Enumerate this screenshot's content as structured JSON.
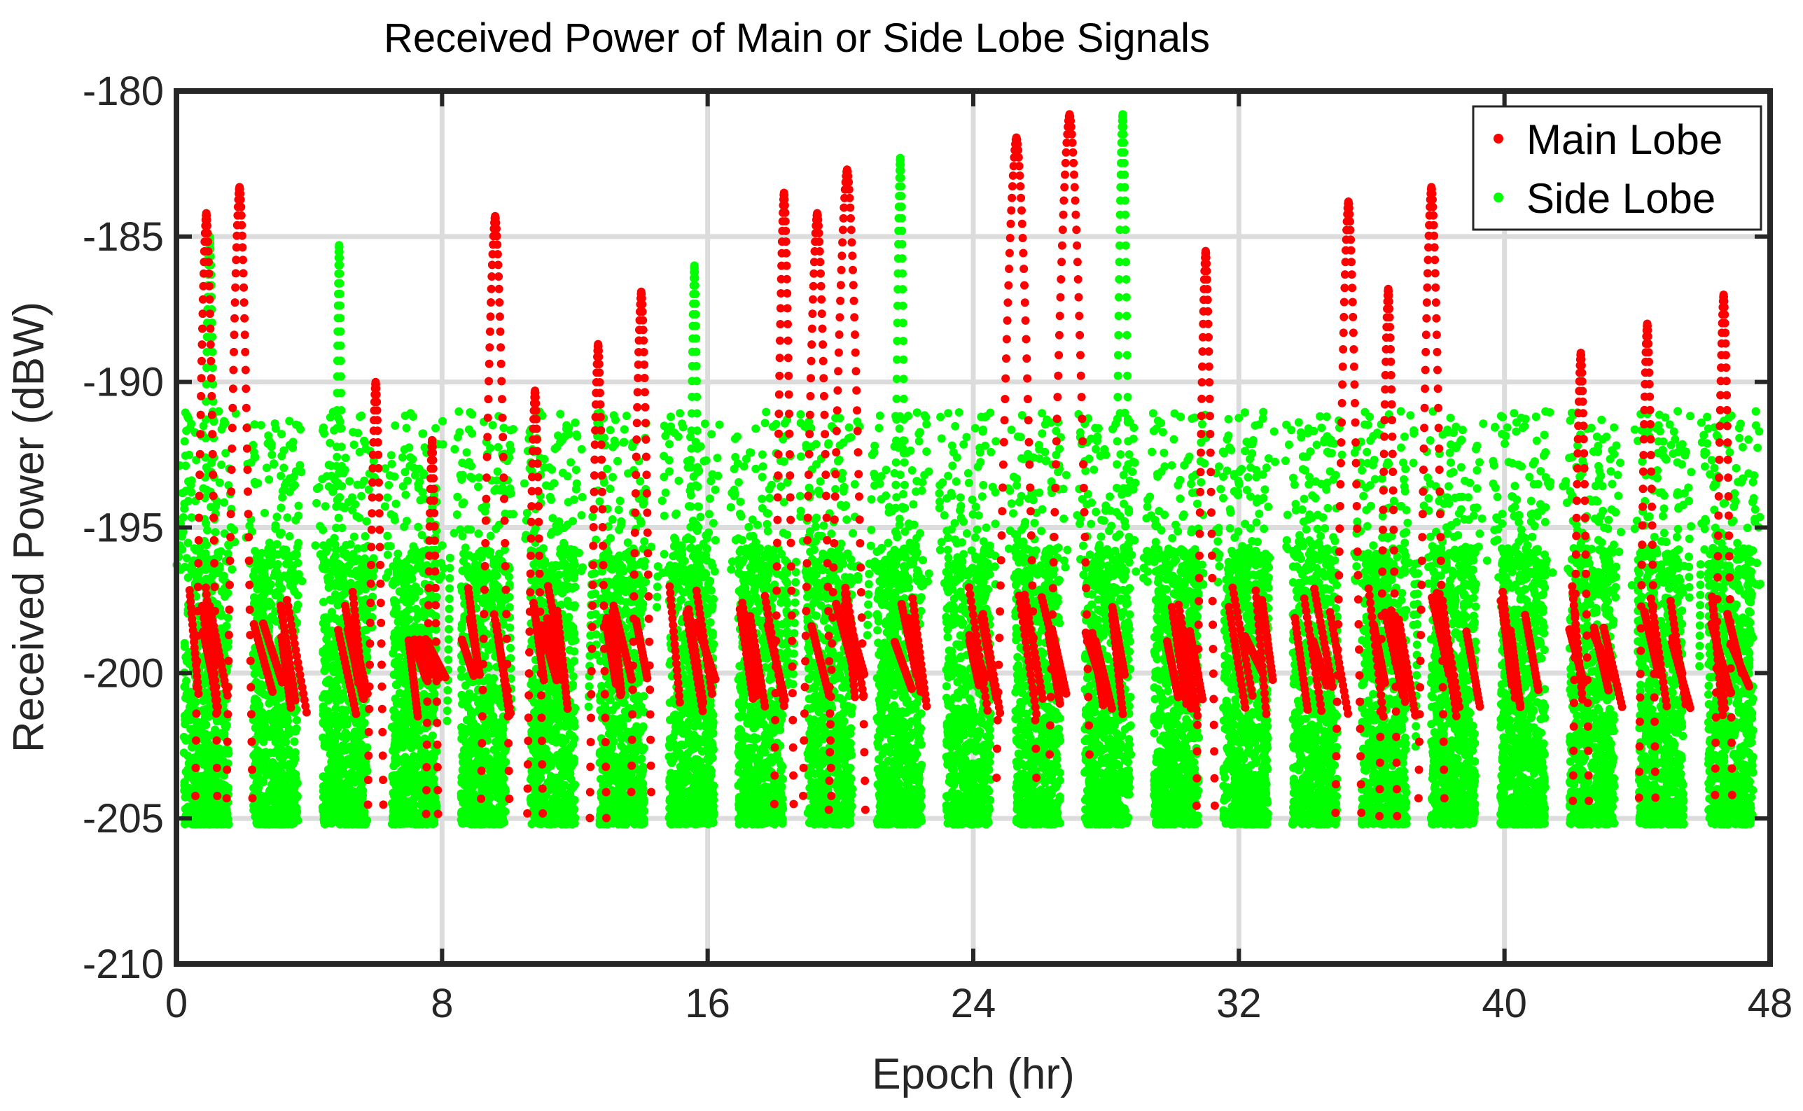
{
  "chart_data": {
    "type": "scatter",
    "title": "Received Power of Main or Side Lobe Signals",
    "xlabel": "Epoch (hr)",
    "ylabel": "Received Power (dBW)",
    "xlim": [
      0,
      48
    ],
    "ylim": [
      -210,
      -180
    ],
    "xticks": [
      0,
      8,
      16,
      24,
      32,
      40,
      48
    ],
    "yticks": [
      -210,
      -205,
      -200,
      -195,
      -190,
      -185,
      -180
    ],
    "grid": true,
    "legend_position": "top-right",
    "series": [
      {
        "name": "Main Lobe",
        "color": "#ff0000"
      },
      {
        "name": "Side Lobe",
        "color": "#00ff00"
      }
    ],
    "passes": [
      {
        "t": 0.9,
        "s": "main",
        "peak": -184.2,
        "hw": 0.35
      },
      {
        "t": 1.9,
        "s": "main",
        "peak": -183.3,
        "hw": 0.4
      },
      {
        "t": 1.0,
        "s": "side",
        "peak": -185.0,
        "hw": 0.25
      },
      {
        "t": 4.9,
        "s": "side",
        "peak": -185.3,
        "hw": 0.15
      },
      {
        "t": 6.0,
        "s": "main",
        "peak": -190.0,
        "hw": 0.3
      },
      {
        "t": 7.7,
        "s": "main",
        "peak": -192.0,
        "hw": 0.25
      },
      {
        "t": 9.6,
        "s": "main",
        "peak": -184.3,
        "hw": 0.45
      },
      {
        "t": 10.8,
        "s": "main",
        "peak": -190.3,
        "hw": 0.3
      },
      {
        "t": 12.7,
        "s": "main",
        "peak": -188.7,
        "hw": 0.3
      },
      {
        "t": 14.0,
        "s": "main",
        "peak": -186.9,
        "hw": 0.35
      },
      {
        "t": 15.6,
        "s": "side",
        "peak": -186.0,
        "hw": 0.2
      },
      {
        "t": 18.3,
        "s": "main",
        "peak": -183.5,
        "hw": 0.3
      },
      {
        "t": 19.3,
        "s": "main",
        "peak": -184.2,
        "hw": 0.45
      },
      {
        "t": 20.2,
        "s": "main",
        "peak": -182.7,
        "hw": 0.55
      },
      {
        "t": 21.8,
        "s": "side",
        "peak": -182.3,
        "hw": 0.2
      },
      {
        "t": 25.3,
        "s": "main",
        "peak": -181.6,
        "hw": 0.6
      },
      {
        "t": 26.9,
        "s": "main",
        "peak": -180.8,
        "hw": 0.6
      },
      {
        "t": 28.5,
        "s": "side",
        "peak": -180.8,
        "hw": 0.25
      },
      {
        "t": 31.0,
        "s": "main",
        "peak": -185.5,
        "hw": 0.3
      },
      {
        "t": 35.3,
        "s": "main",
        "peak": -183.8,
        "hw": 0.4
      },
      {
        "t": 36.5,
        "s": "main",
        "peak": -186.8,
        "hw": 0.3
      },
      {
        "t": 37.8,
        "s": "main",
        "peak": -183.3,
        "hw": 0.4
      },
      {
        "t": 42.3,
        "s": "main",
        "peak": -189.0,
        "hw": 0.3
      },
      {
        "t": 44.3,
        "s": "main",
        "peak": -188.0,
        "hw": 0.3
      },
      {
        "t": 46.6,
        "s": "main",
        "peak": -187.0,
        "hw": 0.3
      }
    ]
  }
}
